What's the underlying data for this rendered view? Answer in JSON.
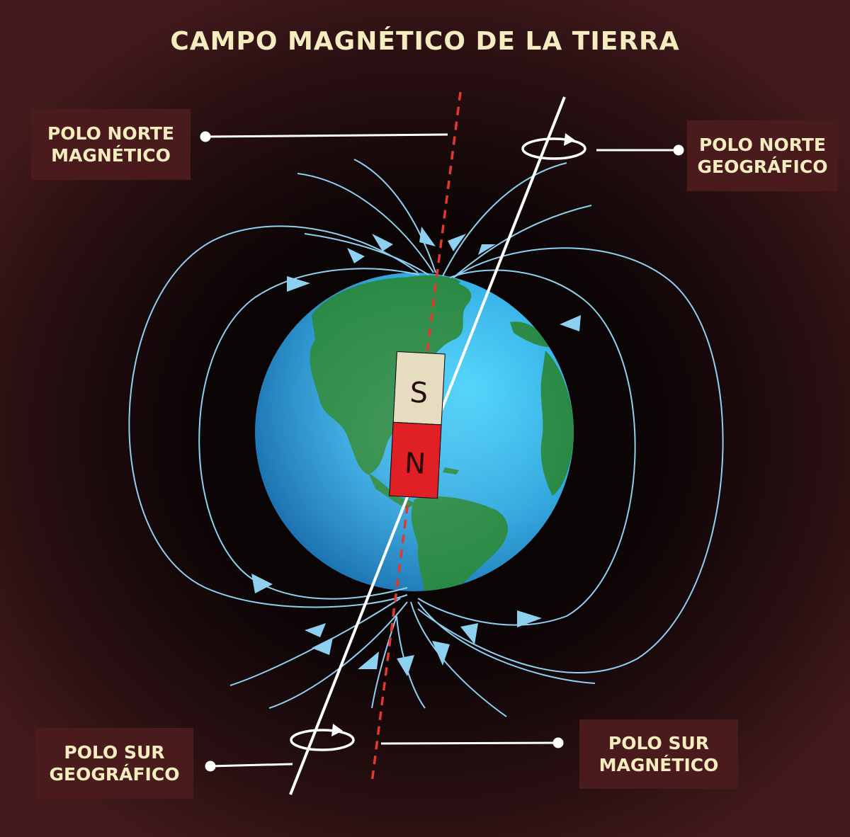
{
  "title": "CAMPO MAGNÉTICO DE LA TIERRA",
  "labels": {
    "north_magnetic": [
      "POLO NORTE",
      "MAGNÉTICO"
    ],
    "north_geographic": [
      "POLO NORTE",
      "GEOGRÁFICO"
    ],
    "south_geographic": [
      "POLO SUR",
      "GEOGRÁFICO"
    ],
    "south_magnetic": [
      "POLO SUR",
      "MAGNÉTICO"
    ]
  },
  "magnet": {
    "top_letter": "S",
    "bottom_letter": "N"
  },
  "colors": {
    "background": "#1a0a0c",
    "label_box": "#4a1b1d",
    "label_text": "#f5edc0",
    "field_lines": "#8ed0f0",
    "magnetic_axis": "#e03a2a",
    "geographic_axis": "#ffffff",
    "ocean": "#3cb8ea",
    "land": "#2a8a45",
    "magnet_south": "#e6dcc0",
    "magnet_north": "#e02024"
  }
}
